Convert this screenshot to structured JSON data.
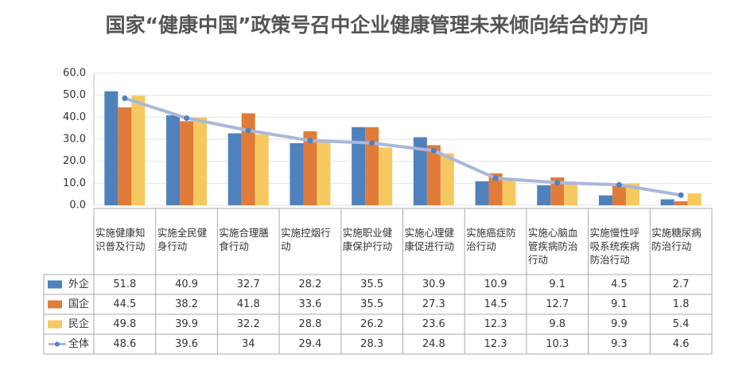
{
  "chart_data": {
    "type": "bar",
    "title": "国家“健康中国”政策号召中企业健康管理未来倾向结合的方向",
    "categories": [
      "实施健康知识普及行动",
      "实施全民健身行动",
      "实施合理膳食行动",
      "实施控烟行动",
      "实施职业健康保护行动",
      "实施心理健康促进行动",
      "实施癌症防治行动",
      "实施心脑血管疾病防治行动",
      "实施慢性呼吸系统疾病防治行动",
      "实施糖尿病防治行动"
    ],
    "series": [
      {
        "name": "外企",
        "type": "bar",
        "color": "#4f81bd",
        "values": [
          51.8,
          40.9,
          32.7,
          28.2,
          35.5,
          30.9,
          10.9,
          9.1,
          4.5,
          2.7
        ]
      },
      {
        "name": "国企",
        "type": "bar",
        "color": "#e07b39",
        "values": [
          44.5,
          38.2,
          41.8,
          33.6,
          35.5,
          27.3,
          14.5,
          12.7,
          9.1,
          1.8
        ]
      },
      {
        "name": "民企",
        "type": "bar",
        "color": "#f5c95f",
        "values": [
          49.8,
          39.9,
          32.2,
          28.8,
          26.2,
          23.6,
          12.3,
          9.8,
          9.9,
          5.4
        ]
      },
      {
        "name": "全体",
        "type": "line",
        "color": "#aab7da",
        "values": [
          48.6,
          39.6,
          34,
          29.4,
          28.3,
          24.8,
          12.3,
          10.3,
          9.3,
          4.6
        ]
      }
    ],
    "ylim": [
      0,
      60
    ],
    "yticks": [
      {
        "value": 0,
        "label": "0.0"
      },
      {
        "value": 10,
        "label": "10.0"
      },
      {
        "value": 20,
        "label": "20.0"
      },
      {
        "value": 30,
        "label": "30.0"
      },
      {
        "value": 40,
        "label": "40.0"
      },
      {
        "value": 50,
        "label": "50.0"
      },
      {
        "value": 60,
        "label": "60.0"
      }
    ],
    "grid": true
  }
}
